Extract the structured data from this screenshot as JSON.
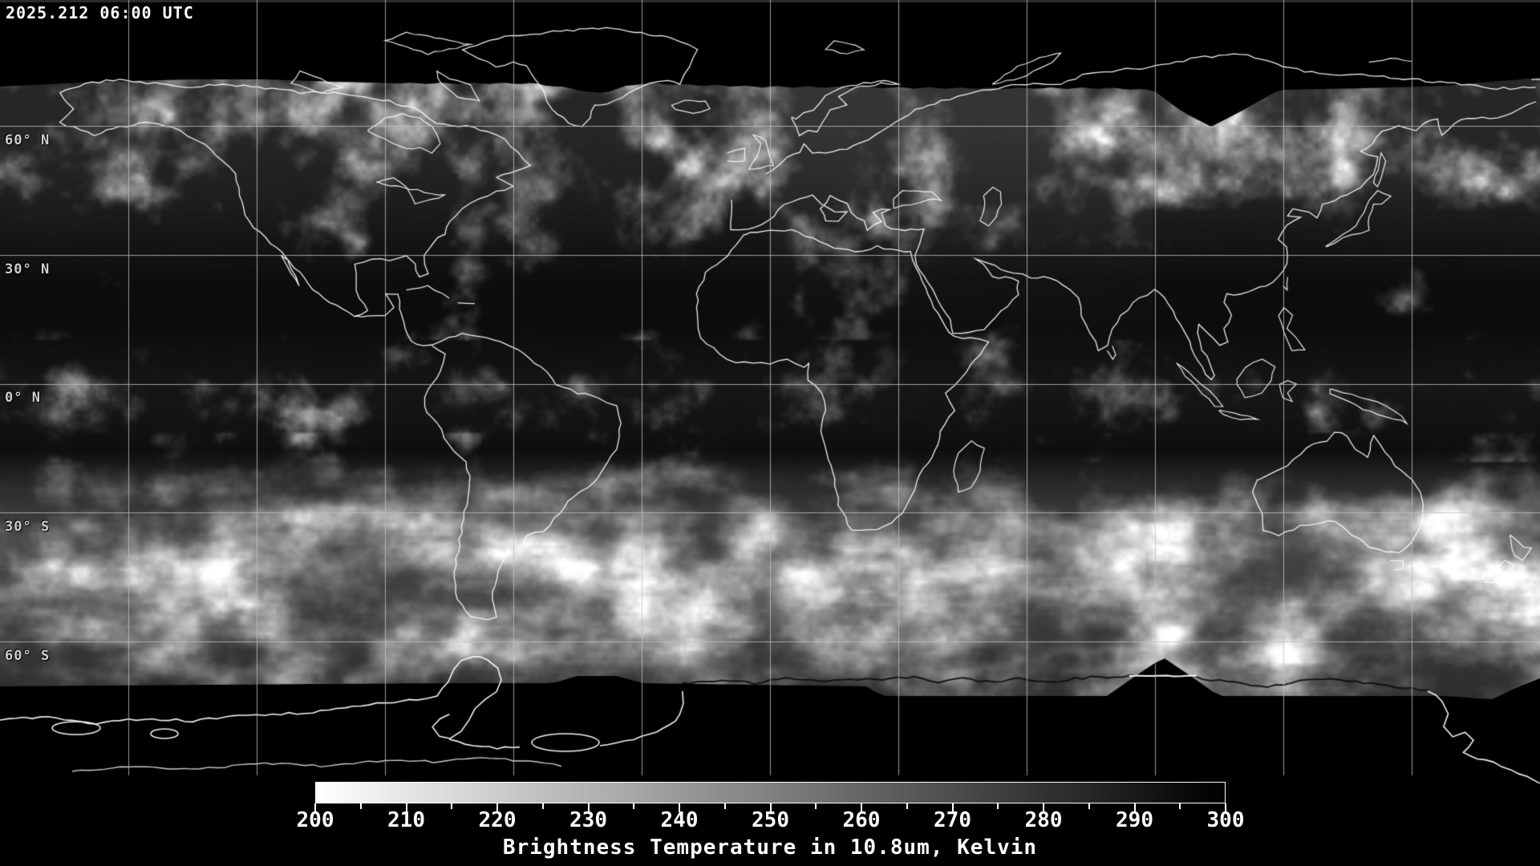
{
  "header": {
    "timestamp": "2025.212 06:00 UTC"
  },
  "map": {
    "lat_labels": [
      {
        "text": "60° N",
        "lat": 60
      },
      {
        "text": "30° N",
        "lat": 30
      },
      {
        "text": "0° N",
        "lat": 0
      },
      {
        "text": "30° S",
        "lat": -30
      },
      {
        "text": "60° S",
        "lat": -60
      }
    ],
    "grid": {
      "lon_step_deg": 30,
      "lat_step_deg": 30,
      "line_color": "#c0c0c0"
    }
  },
  "colorbar": {
    "title": "Brightness Temperature in 10.8um, Kelvin",
    "min": 200,
    "max": 300,
    "major_tick_step": 10,
    "minor_tick_step": 5,
    "tick_labels": [
      "200",
      "210",
      "220",
      "230",
      "240",
      "250",
      "260",
      "270",
      "280",
      "290",
      "300"
    ],
    "gradient_start_color": "#ffffff",
    "gradient_end_color": "#000000"
  }
}
